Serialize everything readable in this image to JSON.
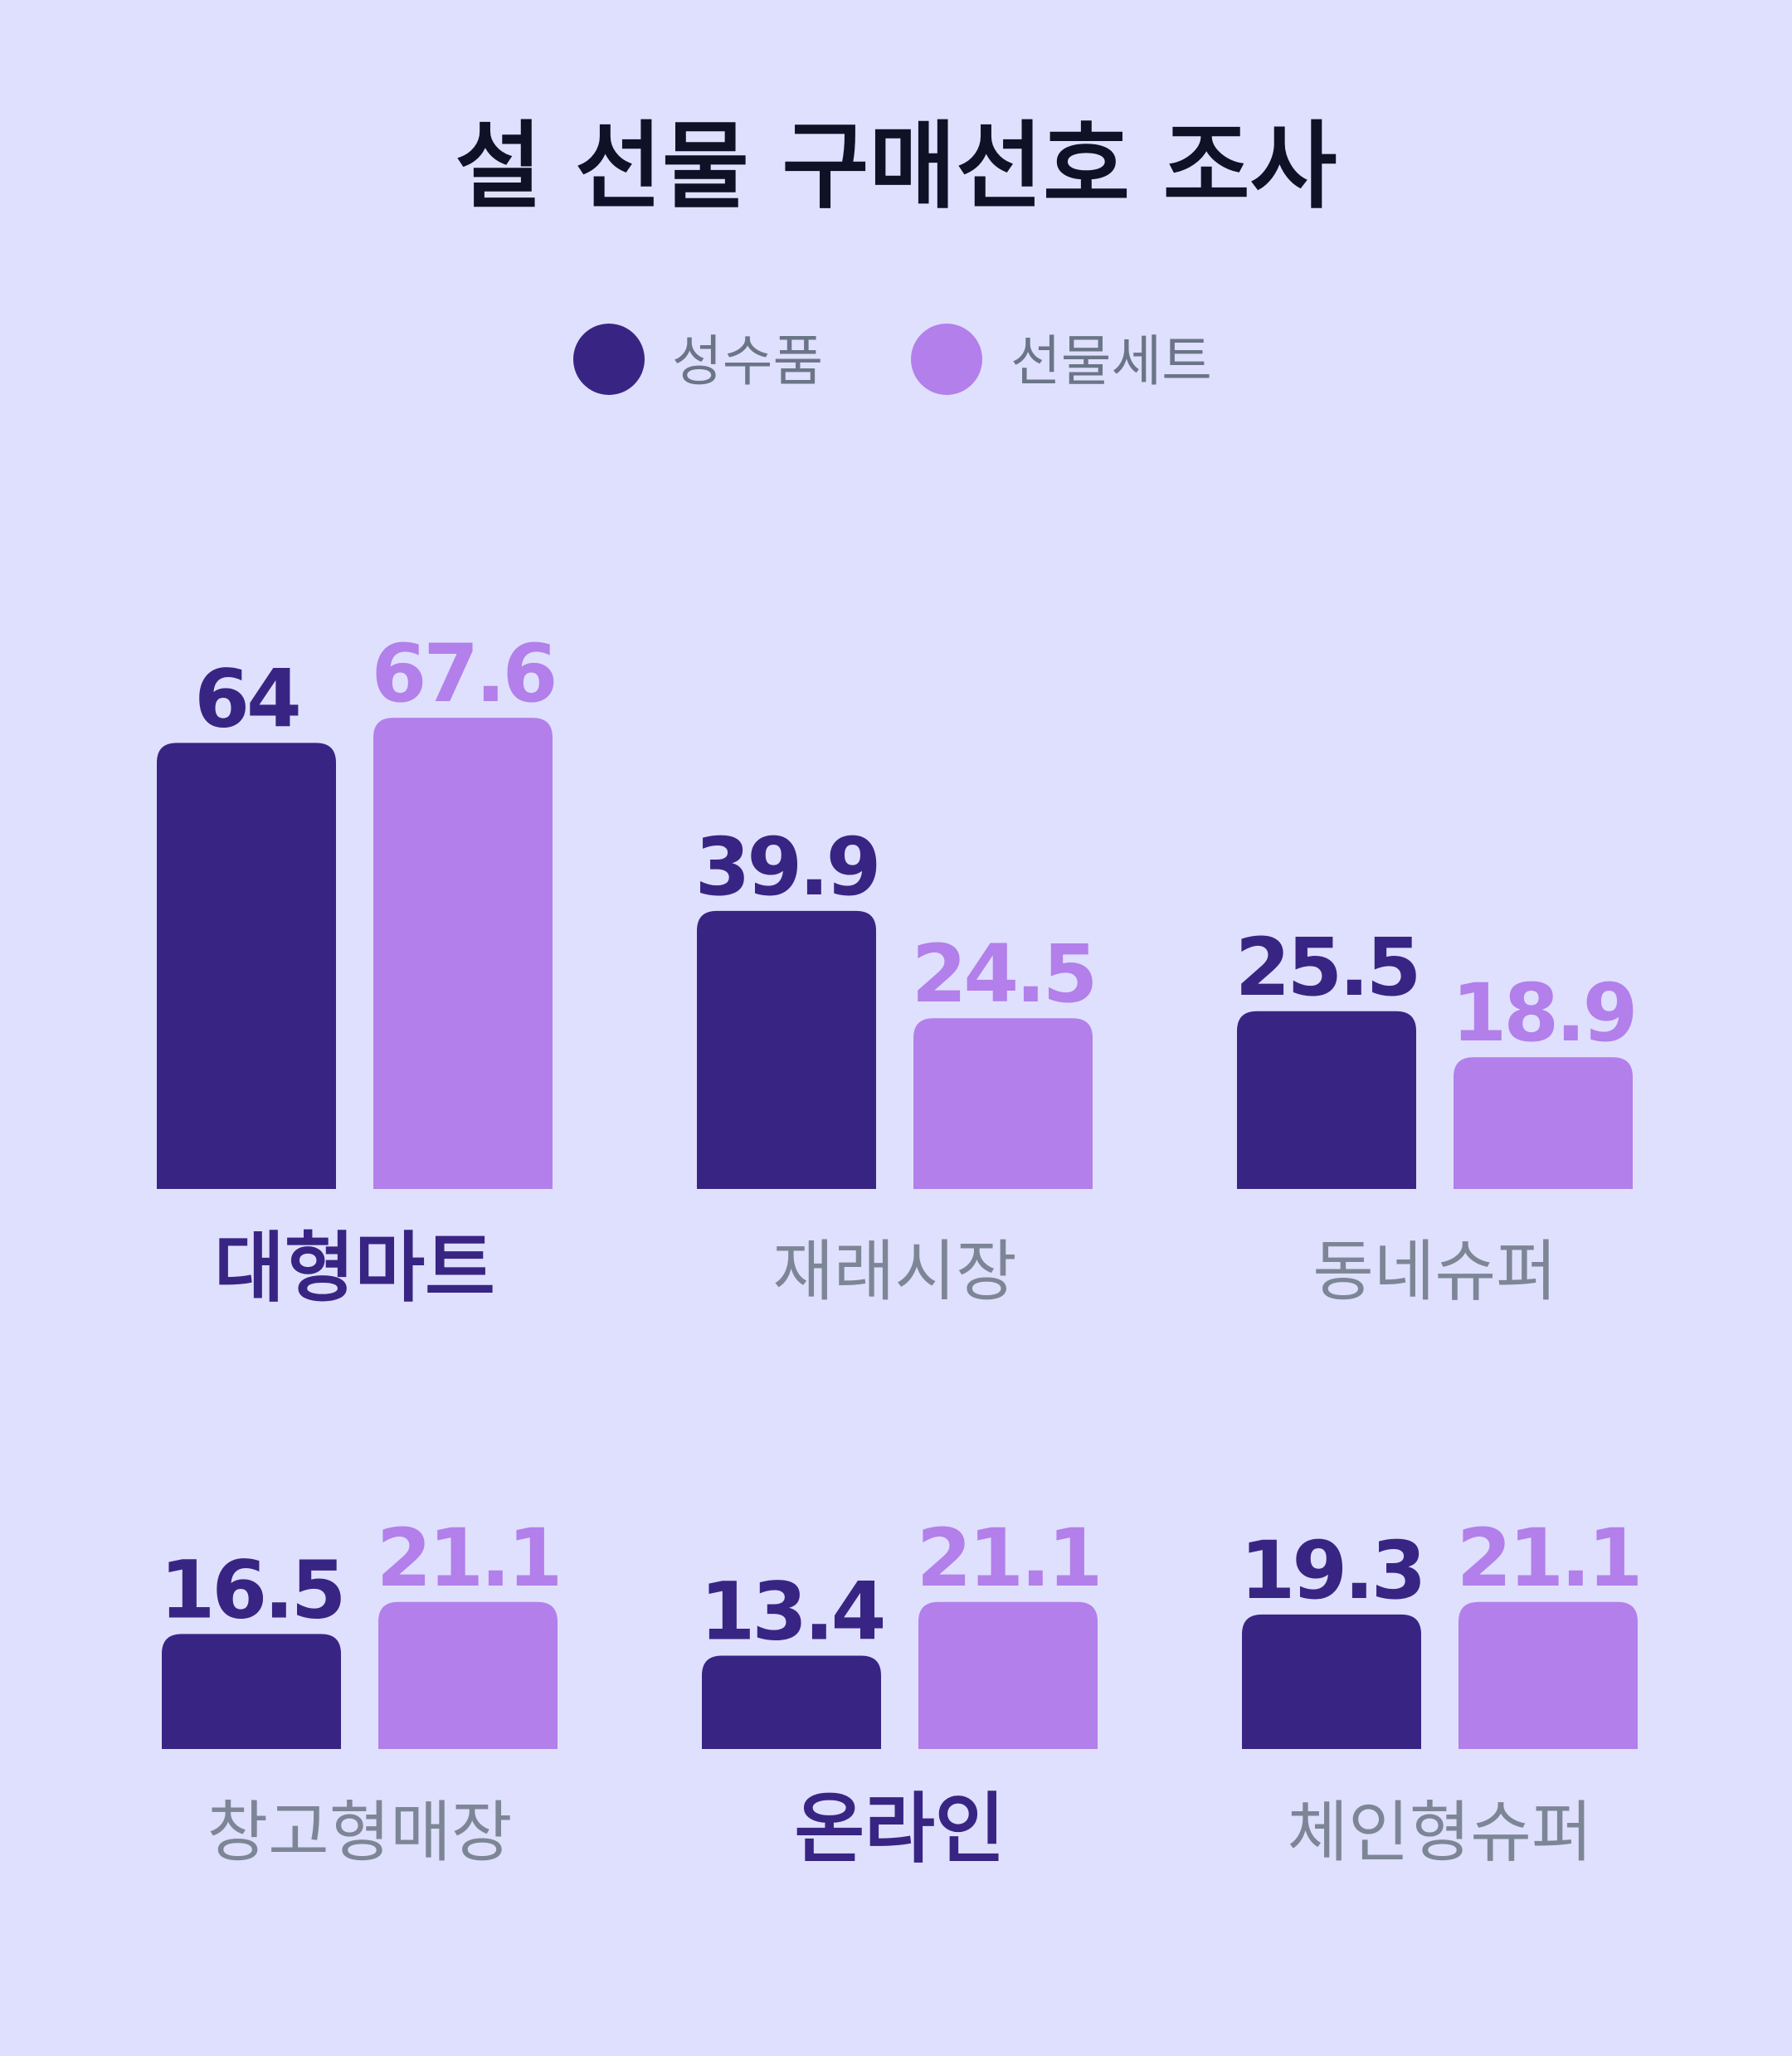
{
  "chart_data": {
    "type": "bar",
    "title": "설 선물 구매선호 조사",
    "colors": {
      "성수품": "#382583",
      "선물세트": "#b37fea"
    },
    "categories": [
      "대형마트",
      "재래시장",
      "동네슈퍼",
      "창고형매장",
      "온라인",
      "체인형슈퍼"
    ],
    "highlighted_categories": [
      "대형마트",
      "온라인"
    ],
    "series": [
      {
        "name": "성수품",
        "values": [
          64,
          39.9,
          25.5,
          16.5,
          13.4,
          19.3
        ]
      },
      {
        "name": "선물세트",
        "values": [
          67.6,
          24.5,
          18.9,
          21.1,
          21.1,
          21.1
        ]
      }
    ],
    "value_labels": {
      "성수품": [
        "64",
        "39.9",
        "25.5",
        "16.5",
        "13.4",
        "19.3"
      ],
      "선물세트": [
        "67.6",
        "24.5",
        "18.9",
        "21.1",
        "21.1",
        "21.1"
      ]
    },
    "legend": {
      "position": "top-center",
      "items": [
        "성수품",
        "선물세트"
      ]
    },
    "grid": false,
    "xlabel": "",
    "ylabel": ""
  }
}
